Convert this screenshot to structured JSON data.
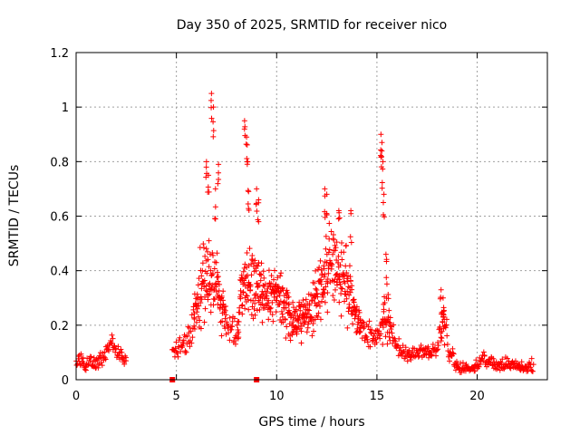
{
  "chart_data": {
    "type": "scatter",
    "title": "Day 350 of 2025, SRMTID for receiver nico",
    "xlabel": "GPS time / hours",
    "ylabel": "SRMTID / TECUs",
    "xlim": [
      0,
      23.5
    ],
    "ylim": [
      0,
      1.2
    ],
    "xticks": [
      0,
      5,
      10,
      15,
      20
    ],
    "xtick_labels": [
      "0",
      "5",
      "10",
      "15",
      "20"
    ],
    "yticks": [
      0,
      0.2,
      0.4,
      0.6,
      0.8,
      1,
      1.2
    ],
    "ytick_labels": [
      "0",
      "0.2",
      "0.4",
      "0.6",
      "0.8",
      "1",
      "1.2"
    ],
    "grid": true,
    "marker": "plus",
    "color": "#ff0000",
    "profile": [
      [
        0.0,
        0.07,
        0.03
      ],
      [
        0.5,
        0.06,
        0.03
      ],
      [
        1.0,
        0.06,
        0.03
      ],
      [
        1.5,
        0.09,
        0.04
      ],
      [
        1.7,
        0.15,
        0.04
      ],
      [
        2.0,
        0.1,
        0.04
      ],
      [
        2.4,
        0.07,
        0.03
      ],
      [
        4.9,
        0.1,
        0.04
      ],
      [
        5.3,
        0.13,
        0.05
      ],
      [
        5.8,
        0.18,
        0.08
      ],
      [
        6.2,
        0.35,
        0.18
      ],
      [
        6.6,
        0.4,
        0.22
      ],
      [
        7.0,
        0.35,
        0.18
      ],
      [
        7.5,
        0.2,
        0.06
      ],
      [
        8.0,
        0.17,
        0.07
      ],
      [
        8.3,
        0.35,
        0.2
      ],
      [
        8.8,
        0.35,
        0.18
      ],
      [
        9.5,
        0.3,
        0.13
      ],
      [
        10.0,
        0.32,
        0.12
      ],
      [
        10.5,
        0.26,
        0.12
      ],
      [
        11.0,
        0.2,
        0.1
      ],
      [
        11.5,
        0.25,
        0.12
      ],
      [
        12.0,
        0.3,
        0.15
      ],
      [
        12.5,
        0.42,
        0.2
      ],
      [
        13.0,
        0.4,
        0.18
      ],
      [
        13.5,
        0.35,
        0.18
      ],
      [
        14.0,
        0.22,
        0.08
      ],
      [
        14.5,
        0.17,
        0.06
      ],
      [
        15.0,
        0.15,
        0.05
      ],
      [
        15.5,
        0.25,
        0.15
      ],
      [
        16.0,
        0.12,
        0.05
      ],
      [
        16.5,
        0.09,
        0.04
      ],
      [
        17.0,
        0.1,
        0.04
      ],
      [
        17.5,
        0.11,
        0.04
      ],
      [
        18.0,
        0.1,
        0.04
      ],
      [
        18.3,
        0.25,
        0.1
      ],
      [
        18.6,
        0.1,
        0.05
      ],
      [
        19.0,
        0.05,
        0.03
      ],
      [
        19.5,
        0.04,
        0.02
      ],
      [
        20.0,
        0.05,
        0.03
      ],
      [
        20.4,
        0.08,
        0.04
      ],
      [
        21.0,
        0.05,
        0.03
      ],
      [
        21.5,
        0.06,
        0.03
      ],
      [
        22.0,
        0.05,
        0.03
      ],
      [
        22.8,
        0.05,
        0.03
      ]
    ],
    "peaks": [
      [
        6.5,
        0.8
      ],
      [
        6.6,
        0.75
      ],
      [
        6.75,
        1.05
      ],
      [
        6.85,
        1.0
      ],
      [
        6.95,
        0.7
      ],
      [
        7.1,
        0.79
      ],
      [
        8.4,
        0.95
      ],
      [
        8.5,
        0.89
      ],
      [
        8.55,
        0.8
      ],
      [
        8.6,
        0.69
      ],
      [
        9.0,
        0.7
      ],
      [
        9.1,
        0.66
      ],
      [
        12.4,
        0.7
      ],
      [
        12.5,
        0.68
      ],
      [
        13.1,
        0.62
      ],
      [
        13.7,
        0.62
      ],
      [
        15.2,
        0.9
      ],
      [
        15.25,
        0.87
      ],
      [
        15.3,
        0.8
      ],
      [
        15.35,
        0.68
      ],
      [
        15.45,
        0.46
      ],
      [
        18.2,
        0.33
      ],
      [
        18.3,
        0.3
      ]
    ],
    "squares": [
      [
        4.8,
        0.0
      ],
      [
        9.0,
        0.0
      ]
    ],
    "gaps": [
      [
        2.5,
        4.8
      ]
    ]
  }
}
